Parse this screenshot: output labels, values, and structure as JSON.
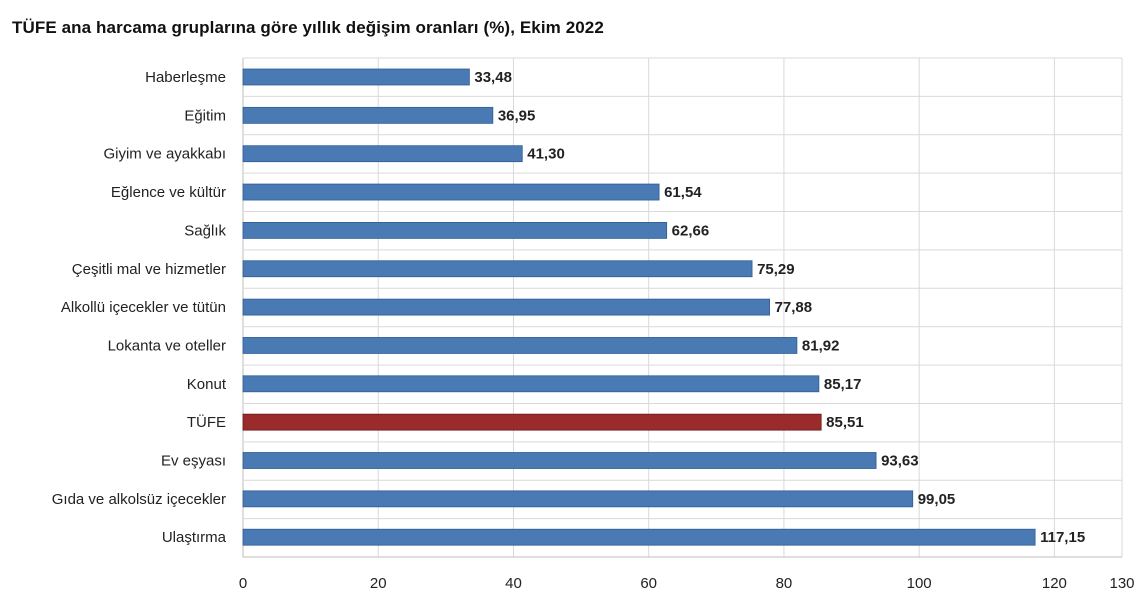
{
  "chart_data": {
    "type": "bar",
    "orientation": "horizontal",
    "title": "TÜFE ana harcama gruplarına göre yıllık değişim oranları (%), Ekim 2022",
    "categories": [
      "Haberleşme",
      "Eğitim",
      "Giyim ve ayakkabı",
      "Eğlence ve kültür",
      "Sağlık",
      "Çeşitli mal ve hizmetler",
      "Alkollü içecekler ve tütün",
      "Lokanta ve oteller",
      "Konut",
      "TÜFE",
      "Ev eşyası",
      "Gıda ve alkolsüz içecekler",
      "Ulaştırma"
    ],
    "values": [
      33.48,
      36.95,
      41.3,
      61.54,
      62.66,
      75.29,
      77.88,
      81.92,
      85.17,
      85.51,
      93.63,
      99.05,
      117.15
    ],
    "value_labels": [
      "33,48",
      "36,95",
      "41,30",
      "61,54",
      "62,66",
      "75,29",
      "77,88",
      "81,92",
      "85,17",
      "85,51",
      "93,63",
      "99,05",
      "117,15"
    ],
    "highlight_category": "TÜFE",
    "xlim": [
      0,
      130
    ],
    "xticks": [
      0,
      20,
      40,
      60,
      80,
      100,
      120,
      130
    ],
    "xtick_labels": [
      "0",
      "20",
      "40",
      "60",
      "80",
      "100",
      "120",
      "130"
    ],
    "xlabel": "",
    "ylabel": "",
    "grid": true,
    "legend": "none",
    "colors": {
      "bar": "#4a7ab3",
      "bar_highlight": "#9b2a2a",
      "grid": "#d9d9d9",
      "axis": "#bdbdbd"
    }
  }
}
